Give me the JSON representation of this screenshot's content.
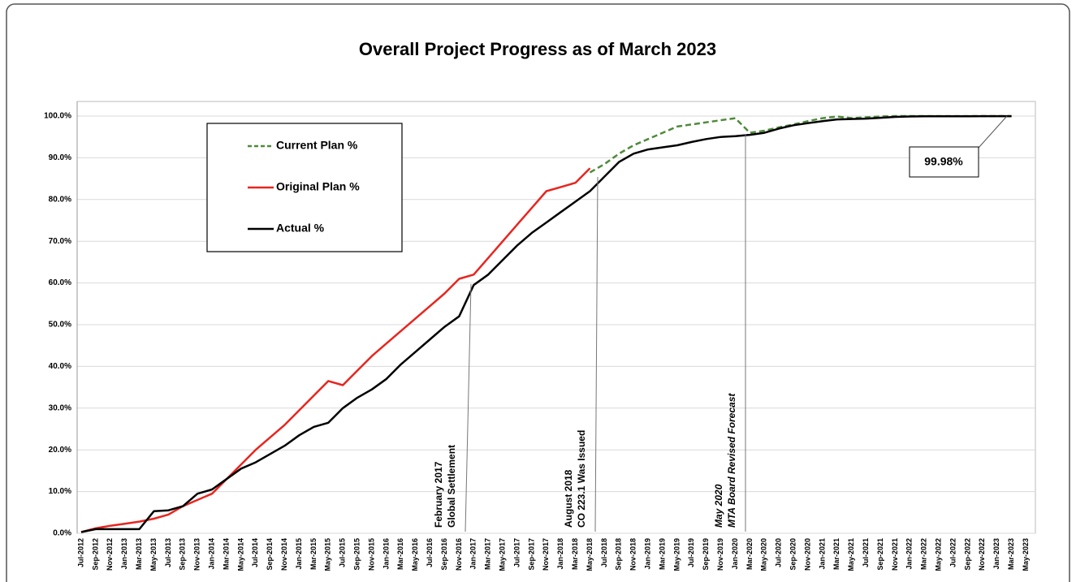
{
  "chart_data": {
    "type": "line",
    "title": "Overall Project Progress as of March 2023",
    "categories": [
      "Jul-2012",
      "Sep-2012",
      "Nov-2012",
      "Jan-2013",
      "Mar-2013",
      "May-2013",
      "Jul-2013",
      "Sep-2013",
      "Nov-2013",
      "Jan-2014",
      "Mar-2014",
      "May-2014",
      "Jul-2014",
      "Sep-2014",
      "Nov-2014",
      "Jan-2015",
      "Mar-2015",
      "May-2015",
      "Jul-2015",
      "Sep-2015",
      "Nov-2015",
      "Jan-2016",
      "Mar-2016",
      "May-2016",
      "Jul-2016",
      "Sep-2016",
      "Nov-2016",
      "Jan-2017",
      "Mar-2017",
      "May-2017",
      "Jul-2017",
      "Sep-2017",
      "Nov-2017",
      "Jan-2018",
      "Mar-2018",
      "May-2018",
      "Jul-2018",
      "Sep-2018",
      "Nov-2018",
      "Jan-2019",
      "Mar-2019",
      "May-2019",
      "Jul-2019",
      "Sep-2019",
      "Nov-2019",
      "Jan-2020",
      "Mar-2020",
      "May-2020",
      "Jul-2020",
      "Sep-2020",
      "Nov-2020",
      "Jan-2021",
      "Mar-2021",
      "May-2021",
      "Jul-2021",
      "Sep-2021",
      "Nov-2021",
      "Jan-2022",
      "Mar-2022",
      "May-2022",
      "Jul-2022",
      "Sep-2022",
      "Nov-2022",
      "Jan-2023",
      "Mar-2023",
      "May-2023"
    ],
    "series": [
      {
        "name": "Current Plan %",
        "color": "#4e8a3a",
        "dashed": true,
        "values": [
          null,
          null,
          null,
          null,
          null,
          null,
          null,
          null,
          null,
          null,
          null,
          null,
          null,
          null,
          null,
          null,
          null,
          null,
          null,
          null,
          null,
          null,
          null,
          null,
          null,
          null,
          null,
          null,
          null,
          null,
          null,
          null,
          null,
          null,
          null,
          86.5,
          88.5,
          91,
          93,
          94.5,
          96,
          97.5,
          98,
          98.5,
          99,
          99.5,
          96,
          96.5,
          97.3,
          98,
          98.8,
          99.5,
          99.9,
          99.5,
          99.7,
          99.9,
          100,
          100,
          100,
          100,
          100,
          100,
          100,
          100,
          100,
          null
        ]
      },
      {
        "name": "Original Plan %",
        "color": "#e8251f",
        "dashed": false,
        "values": [
          0.3,
          1.2,
          1.8,
          2.3,
          2.8,
          3.5,
          4.5,
          6.5,
          8,
          9.5,
          13,
          16.5,
          20,
          23,
          26,
          29.5,
          33,
          36.5,
          35.5,
          39,
          42.5,
          45.5,
          48.5,
          51.5,
          54.5,
          57.5,
          61,
          62,
          66,
          70,
          74,
          78,
          82,
          83,
          84,
          87.5,
          null,
          null,
          null,
          null,
          null,
          null,
          null,
          null,
          null,
          null,
          null,
          null,
          null,
          null,
          null,
          null,
          null,
          null,
          null,
          null,
          null,
          null,
          null,
          null,
          null,
          null,
          null,
          null,
          null,
          null
        ]
      },
      {
        "name": "Actual %",
        "color": "#000000",
        "dashed": false,
        "values": [
          0.3,
          1,
          1,
          1,
          1,
          5.3,
          5.5,
          6.5,
          9.5,
          10.5,
          13,
          15.5,
          17,
          19,
          21,
          23.5,
          25.5,
          26.5,
          30,
          32.5,
          34.5,
          37,
          40.5,
          43.5,
          46.5,
          49.5,
          52,
          59.5,
          62,
          65.5,
          69,
          72,
          74.5,
          77,
          79.5,
          82,
          85.5,
          89,
          91,
          92,
          92.5,
          93,
          93.8,
          94.5,
          95,
          95.2,
          95.5,
          96,
          97,
          97.8,
          98.3,
          98.8,
          99.2,
          99.3,
          99.4,
          99.6,
          99.8,
          99.9,
          99.95,
          99.95,
          99.96,
          99.97,
          99.98,
          99.98,
          99.98,
          null
        ]
      }
    ],
    "ylim": [
      0,
      100
    ],
    "yticks": [
      {
        "value": 0,
        "label": "0.0%"
      },
      {
        "value": 10,
        "label": "10.0%"
      },
      {
        "value": 20,
        "label": "20.0%"
      },
      {
        "value": 30,
        "label": "30.0%"
      },
      {
        "value": 40,
        "label": "40.0%"
      },
      {
        "value": 50,
        "label": "50.0%"
      },
      {
        "value": 60,
        "label": "60.0%"
      },
      {
        "value": 70,
        "label": "70.0%"
      },
      {
        "value": 80,
        "label": "80.0%"
      },
      {
        "value": 90,
        "label": "90.0%"
      },
      {
        "value": 100,
        "label": "100.0%"
      }
    ],
    "grid": true,
    "annotations": [
      {
        "lines": [
          "February 2017",
          "Global Settlement"
        ],
        "italic": false
      },
      {
        "lines": [
          "August 2018",
          "CO 223.1 Was Issued"
        ],
        "italic": false
      },
      {
        "lines": [
          "May 2020",
          "MTA Board Revised Forecast"
        ],
        "italic": true
      }
    ],
    "callout": {
      "label": "99.98%"
    }
  }
}
